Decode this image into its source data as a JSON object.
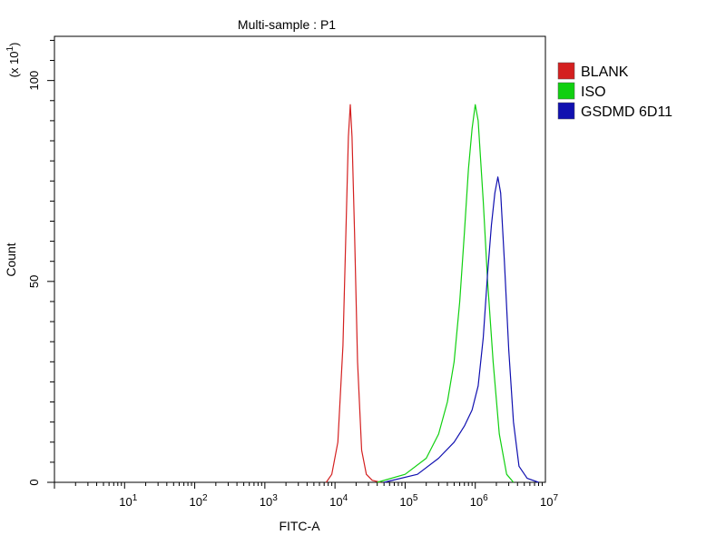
{
  "chart_data": {
    "type": "line",
    "title": "Multi-sample : P1",
    "xlabel": "FITC-A",
    "ylabel": "Count",
    "y_multiplier": "(x 10",
    "y_multiplier_exp": "1",
    "y_multiplier_close": ")",
    "x_scale": "log",
    "xlim": [
      1,
      10000000
    ],
    "ylim": [
      0,
      1.11
    ],
    "x_ticks": [
      {
        "base": "10",
        "exp": "1",
        "value": 10
      },
      {
        "base": "10",
        "exp": "2",
        "value": 100
      },
      {
        "base": "10",
        "exp": "3",
        "value": 1000
      },
      {
        "base": "10",
        "exp": "4",
        "value": 10000
      },
      {
        "base": "10",
        "exp": "5",
        "value": 100000
      },
      {
        "base": "10",
        "exp": "6",
        "value": 1000000
      },
      {
        "base": "10",
        "exp": "7",
        "value": 10000000
      }
    ],
    "y_ticks": [
      {
        "label": "0",
        "value": 0
      },
      {
        "label": "50",
        "value": 0.5
      },
      {
        "label": "100",
        "value": 1.0
      }
    ],
    "grid": false,
    "legend_position": "right",
    "series": [
      {
        "name": "BLANK",
        "color": "#d42020",
        "points": [
          [
            7500,
            0
          ],
          [
            9000,
            0.02
          ],
          [
            11000,
            0.1
          ],
          [
            13000,
            0.34
          ],
          [
            14500,
            0.66
          ],
          [
            15500,
            0.86
          ],
          [
            16500,
            0.94
          ],
          [
            17500,
            0.86
          ],
          [
            19000,
            0.62
          ],
          [
            21000,
            0.3
          ],
          [
            24000,
            0.08
          ],
          [
            28000,
            0.02
          ],
          [
            34000,
            0.005
          ],
          [
            45000,
            0
          ]
        ]
      },
      {
        "name": "ISO",
        "color": "#10d010",
        "points": [
          [
            40000,
            0
          ],
          [
            100000,
            0.02
          ],
          [
            200000,
            0.06
          ],
          [
            300000,
            0.12
          ],
          [
            400000,
            0.2
          ],
          [
            500000,
            0.3
          ],
          [
            600000,
            0.45
          ],
          [
            700000,
            0.62
          ],
          [
            800000,
            0.78
          ],
          [
            900000,
            0.88
          ],
          [
            1000000,
            0.94
          ],
          [
            1100000,
            0.9
          ],
          [
            1300000,
            0.7
          ],
          [
            1500000,
            0.5
          ],
          [
            1800000,
            0.3
          ],
          [
            2200000,
            0.12
          ],
          [
            2800000,
            0.02
          ],
          [
            3500000,
            0
          ]
        ]
      },
      {
        "name": "GSDMD 6D11",
        "color": "#1010b0",
        "points": [
          [
            50000,
            0
          ],
          [
            150000,
            0.02
          ],
          [
            300000,
            0.06
          ],
          [
            500000,
            0.1
          ],
          [
            700000,
            0.14
          ],
          [
            900000,
            0.18
          ],
          [
            1100000,
            0.24
          ],
          [
            1300000,
            0.36
          ],
          [
            1500000,
            0.52
          ],
          [
            1700000,
            0.64
          ],
          [
            1900000,
            0.72
          ],
          [
            2100000,
            0.76
          ],
          [
            2300000,
            0.72
          ],
          [
            2600000,
            0.55
          ],
          [
            3000000,
            0.33
          ],
          [
            3500000,
            0.15
          ],
          [
            4200000,
            0.04
          ],
          [
            5500000,
            0.01
          ],
          [
            8000000,
            0
          ]
        ]
      }
    ]
  }
}
